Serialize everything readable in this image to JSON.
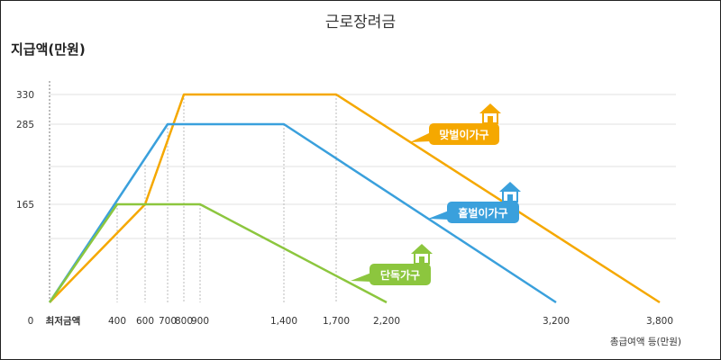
{
  "chart_data": {
    "type": "line",
    "title": "근로장려금",
    "ylabel": "지급액(만원)",
    "xlabel": "총급여액 등(만원)",
    "origin_label": "0",
    "min_wage_label": "최저금액",
    "x_ticks": [
      {
        "value": 400,
        "label": "400"
      },
      {
        "value": 600,
        "label": "600"
      },
      {
        "value": 700,
        "label": "700"
      },
      {
        "value": 800,
        "label": "800"
      },
      {
        "value": 900,
        "label": "900"
      },
      {
        "value": 1400,
        "label": "1,400"
      },
      {
        "value": 1700,
        "label": "1,700"
      },
      {
        "value": 2200,
        "label": "2,200"
      },
      {
        "value": 3200,
        "label": "3,200"
      },
      {
        "value": 3800,
        "label": "3,800"
      }
    ],
    "y_ticks": [
      {
        "value": 165,
        "label": "165"
      },
      {
        "value": 285,
        "label": "285"
      },
      {
        "value": 330,
        "label": "330"
      }
    ],
    "grid": true,
    "series": [
      {
        "name": "맞벌이가구",
        "color": "#f5a800",
        "points": [
          [
            0,
            0
          ],
          [
            600,
            165
          ],
          [
            800,
            330
          ],
          [
            1700,
            330
          ],
          [
            3800,
            0
          ]
        ]
      },
      {
        "name": "홑벌이가구",
        "color": "#3aa0dc",
        "points": [
          [
            0,
            0
          ],
          [
            700,
            285
          ],
          [
            1400,
            285
          ],
          [
            3200,
            0
          ]
        ]
      },
      {
        "name": "단독가구",
        "color": "#8cc63e",
        "points": [
          [
            0,
            0
          ],
          [
            400,
            165
          ],
          [
            900,
            165
          ],
          [
            2200,
            0
          ]
        ]
      }
    ]
  }
}
